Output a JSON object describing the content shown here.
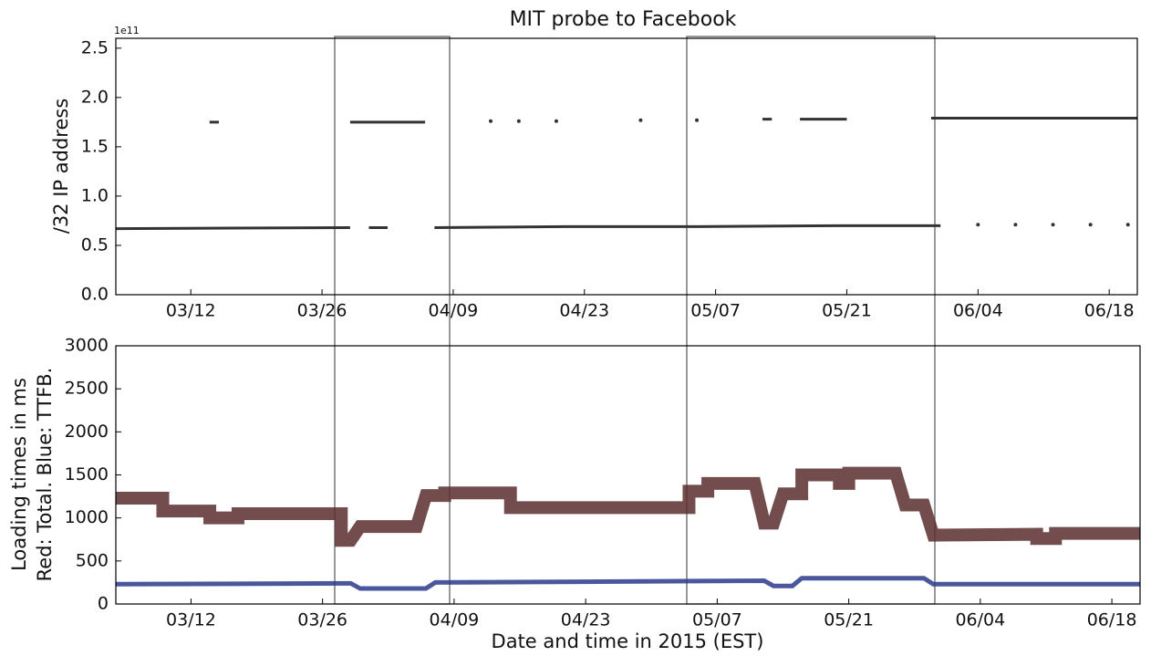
{
  "chart_data": [
    {
      "type": "line",
      "title": "MIT probe to Facebook",
      "ylabel": "/32 IP address",
      "y_offset_label": "1e11",
      "xlim": [
        "03/04",
        "06/21"
      ],
      "xticks": [
        "03/12",
        "03/26",
        "04/09",
        "04/23",
        "05/07",
        "05/21",
        "06/04",
        "06/18"
      ],
      "ylim": [
        0,
        2.6
      ],
      "yticks": [
        {
          "value": 0,
          "label": "0.0"
        },
        0.5,
        {
          "value": 1,
          "label": "1.0"
        },
        1.5,
        {
          "value": 2,
          "label": "2.0"
        },
        2.5
      ],
      "series": [
        {
          "color": "#333333",
          "x": [
            "03/04",
            "03/29",
            "03/30",
            "03/31",
            "04/02",
            "04/06",
            "04/07",
            "04/21",
            "05/05",
            "05/20",
            "05/31",
            "06/01",
            "06/04",
            "06/05",
            "06/08",
            "06/09",
            "06/12",
            "06/13",
            "06/16",
            "06/17",
            "06/20"
          ],
          "values": [
            0.67,
            0.68,
            null,
            0.68,
            0.68,
            null,
            0.68,
            0.69,
            0.69,
            0.7,
            0.7,
            null,
            0.71,
            null,
            0.71,
            null,
            0.71,
            null,
            0.71,
            null,
            0.71
          ]
        },
        {
          "color": "#333333",
          "x": [
            "03/14",
            "03/15",
            "03/16",
            "03/29",
            "04/06",
            "04/07",
            "04/13",
            "04/14",
            "04/16",
            "04/17",
            "04/20",
            "04/21",
            "04/29",
            "04/30",
            "05/05",
            "05/06",
            "05/12",
            "05/13",
            "05/15",
            "05/16",
            "05/21",
            "05/22",
            "05/30",
            "06/21"
          ],
          "values": [
            1.75,
            1.75,
            null,
            1.75,
            1.75,
            null,
            1.76,
            null,
            1.76,
            null,
            1.76,
            null,
            1.77,
            null,
            1.77,
            null,
            1.78,
            1.78,
            null,
            1.78,
            1.78,
            null,
            1.79,
            1.79
          ]
        }
      ]
    },
    {
      "type": "line",
      "xlabel": "Date and time in 2015 (EST)",
      "ylabel": [
        "Loading times in ms",
        "Red: Total. Blue: TTFB."
      ],
      "xlim": [
        "03/04",
        "06/21"
      ],
      "xticks": [
        "03/12",
        "03/26",
        "04/09",
        "04/23",
        "05/07",
        "05/21",
        "06/04",
        "06/18"
      ],
      "ylim": [
        0,
        3000
      ],
      "yticks": [
        0,
        500,
        1000,
        1500,
        2000,
        2500,
        3000
      ],
      "series": [
        {
          "color": "#5a2e2e",
          "x": [
            "03/04",
            "03/09",
            "03/09",
            "03/14",
            "03/14",
            "03/17",
            "03/17",
            "03/28",
            "03/28",
            "03/29",
            "03/30",
            "04/05",
            "04/06",
            "04/08",
            "04/08",
            "04/15",
            "04/15",
            "05/04",
            "05/04",
            "05/06",
            "05/06",
            "05/11",
            "05/12",
            "05/13",
            "05/14",
            "05/16",
            "05/16",
            "05/20",
            "05/20",
            "05/21",
            "05/21",
            "05/26",
            "05/27",
            "05/29",
            "05/30",
            "06/10",
            "06/10",
            "06/12",
            "06/12",
            "06/21"
          ],
          "values": [
            1230,
            1230,
            1080,
            1080,
            1000,
            1000,
            1050,
            1050,
            740,
            740,
            900,
            900,
            1260,
            1260,
            1290,
            1290,
            1120,
            1120,
            1310,
            1310,
            1400,
            1400,
            940,
            940,
            1280,
            1280,
            1500,
            1500,
            1400,
            1400,
            1520,
            1520,
            1150,
            1150,
            800,
            810,
            760,
            760,
            820,
            820
          ]
        },
        {
          "color": "#2b3a8c",
          "x": [
            "03/04",
            "03/29",
            "03/30",
            "04/06",
            "04/07",
            "05/12",
            "05/13",
            "05/15",
            "05/16",
            "05/29",
            "05/30",
            "06/21"
          ],
          "values": [
            230,
            240,
            180,
            180,
            250,
            270,
            210,
            210,
            300,
            300,
            230,
            230
          ]
        }
      ]
    }
  ]
}
